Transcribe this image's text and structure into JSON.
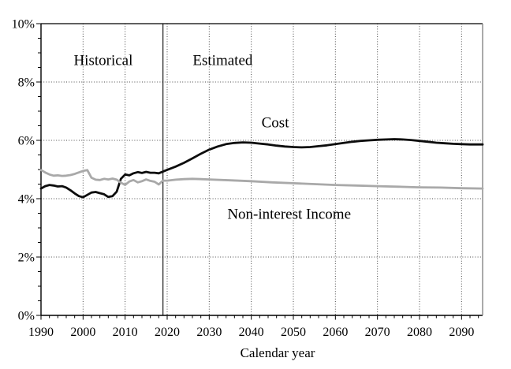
{
  "figure": {
    "background": "#ffffff",
    "xlabel": "Calendar year"
  },
  "chart_data": {
    "type": "line",
    "title": "",
    "xlabel": "Calendar year",
    "ylabel": "",
    "xlim": [
      1990,
      2095
    ],
    "ylim": [
      0,
      10
    ],
    "x_major_ticks": [
      1990,
      2000,
      2010,
      2020,
      2030,
      2040,
      2050,
      2060,
      2070,
      2080,
      2090
    ],
    "x_minor_step": 2,
    "y_major_ticks": [
      0,
      2,
      4,
      6,
      8,
      10
    ],
    "y_minor_step": 0.5,
    "y_tick_suffix": "%",
    "grid": "dotted",
    "grid_color": "#4a4a4a",
    "divider": {
      "x": 2019,
      "color": "#1a1a1a"
    },
    "annotations": [
      {
        "id": "historical-label",
        "text": "Historical",
        "x": 2004.8,
        "y": 8.76,
        "size": 19
      },
      {
        "id": "estimated-label",
        "text": "Estimated",
        "x": 2033.2,
        "y": 8.76,
        "size": 19
      },
      {
        "id": "cost-label",
        "text": "Cost",
        "x": 2045.7,
        "y": 6.62,
        "size": 19
      },
      {
        "id": "income-label",
        "text": "Non-interest Income",
        "x": 2049.0,
        "y": 3.49,
        "size": 19
      }
    ],
    "series": [
      {
        "key": "cost",
        "name": "Cost",
        "color": "#0d0d0d",
        "width": 2.8,
        "points": [
          [
            1990,
            4.35
          ],
          [
            1991,
            4.43
          ],
          [
            1992,
            4.47
          ],
          [
            1993,
            4.45
          ],
          [
            1994,
            4.42
          ],
          [
            1995,
            4.43
          ],
          [
            1996,
            4.38
          ],
          [
            1997,
            4.29
          ],
          [
            1998,
            4.18
          ],
          [
            1999,
            4.09
          ],
          [
            2000,
            4.05
          ],
          [
            2001,
            4.13
          ],
          [
            2002,
            4.21
          ],
          [
            2003,
            4.23
          ],
          [
            2004,
            4.19
          ],
          [
            2005,
            4.15
          ],
          [
            2006,
            4.06
          ],
          [
            2007,
            4.09
          ],
          [
            2008,
            4.24
          ],
          [
            2009,
            4.68
          ],
          [
            2010,
            4.83
          ],
          [
            2011,
            4.8
          ],
          [
            2012,
            4.87
          ],
          [
            2013,
            4.91
          ],
          [
            2014,
            4.88
          ],
          [
            2015,
            4.92
          ],
          [
            2016,
            4.89
          ],
          [
            2017,
            4.89
          ],
          [
            2018,
            4.87
          ],
          [
            2019,
            4.93
          ],
          [
            2020,
            4.99
          ],
          [
            2022,
            5.1
          ],
          [
            2024,
            5.23
          ],
          [
            2026,
            5.38
          ],
          [
            2028,
            5.54
          ],
          [
            2030,
            5.68
          ],
          [
            2032,
            5.79
          ],
          [
            2034,
            5.87
          ],
          [
            2036,
            5.91
          ],
          [
            2038,
            5.93
          ],
          [
            2040,
            5.92
          ],
          [
            2042,
            5.89
          ],
          [
            2044,
            5.86
          ],
          [
            2046,
            5.82
          ],
          [
            2048,
            5.79
          ],
          [
            2050,
            5.77
          ],
          [
            2052,
            5.76
          ],
          [
            2054,
            5.77
          ],
          [
            2056,
            5.8
          ],
          [
            2058,
            5.83
          ],
          [
            2060,
            5.87
          ],
          [
            2062,
            5.91
          ],
          [
            2064,
            5.95
          ],
          [
            2066,
            5.98
          ],
          [
            2068,
            6.0
          ],
          [
            2070,
            6.02
          ],
          [
            2072,
            6.03
          ],
          [
            2074,
            6.04
          ],
          [
            2076,
            6.03
          ],
          [
            2078,
            6.01
          ],
          [
            2080,
            5.98
          ],
          [
            2082,
            5.95
          ],
          [
            2084,
            5.92
          ],
          [
            2086,
            5.9
          ],
          [
            2088,
            5.88
          ],
          [
            2090,
            5.87
          ],
          [
            2092,
            5.86
          ],
          [
            2095,
            5.86
          ]
        ]
      },
      {
        "key": "income",
        "name": "Non-interest Income",
        "color": "#a9a9a9",
        "width": 2.8,
        "points": [
          [
            1990,
            4.98
          ],
          [
            1991,
            4.9
          ],
          [
            1992,
            4.83
          ],
          [
            1993,
            4.79
          ],
          [
            1994,
            4.8
          ],
          [
            1995,
            4.78
          ],
          [
            1996,
            4.79
          ],
          [
            1997,
            4.81
          ],
          [
            1998,
            4.85
          ],
          [
            1999,
            4.9
          ],
          [
            2000,
            4.95
          ],
          [
            2001,
            4.98
          ],
          [
            2002,
            4.72
          ],
          [
            2003,
            4.65
          ],
          [
            2004,
            4.64
          ],
          [
            2005,
            4.68
          ],
          [
            2006,
            4.66
          ],
          [
            2007,
            4.69
          ],
          [
            2008,
            4.65
          ],
          [
            2009,
            4.55
          ],
          [
            2010,
            4.47
          ],
          [
            2011,
            4.59
          ],
          [
            2012,
            4.64
          ],
          [
            2013,
            4.56
          ],
          [
            2014,
            4.6
          ],
          [
            2015,
            4.66
          ],
          [
            2016,
            4.61
          ],
          [
            2017,
            4.58
          ],
          [
            2018,
            4.49
          ],
          [
            2019,
            4.62
          ],
          [
            2020,
            4.62
          ],
          [
            2022,
            4.65
          ],
          [
            2024,
            4.67
          ],
          [
            2026,
            4.68
          ],
          [
            2028,
            4.67
          ],
          [
            2030,
            4.66
          ],
          [
            2035,
            4.63
          ],
          [
            2040,
            4.6
          ],
          [
            2045,
            4.56
          ],
          [
            2050,
            4.53
          ],
          [
            2055,
            4.5
          ],
          [
            2060,
            4.47
          ],
          [
            2065,
            4.45
          ],
          [
            2070,
            4.43
          ],
          [
            2075,
            4.41
          ],
          [
            2080,
            4.39
          ],
          [
            2085,
            4.38
          ],
          [
            2090,
            4.36
          ],
          [
            2095,
            4.35
          ]
        ]
      }
    ]
  }
}
